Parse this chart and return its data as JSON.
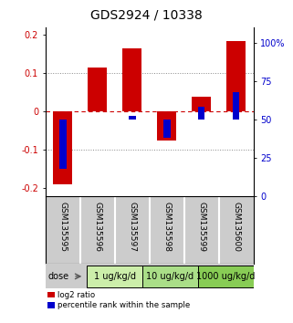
{
  "title": "GDS2924 / 10338",
  "samples": [
    "GSM135595",
    "GSM135596",
    "GSM135597",
    "GSM135598",
    "GSM135599",
    "GSM135600"
  ],
  "log2_ratio": [
    -0.19,
    0.115,
    0.165,
    -0.075,
    0.04,
    0.185
  ],
  "percentile_rank": [
    18,
    50,
    52,
    38,
    58,
    68
  ],
  "dose_groups": [
    {
      "label": "1 ug/kg/d",
      "cols": [
        0,
        1
      ],
      "color": "#cceeaa"
    },
    {
      "label": "10 ug/kg/d",
      "cols": [
        2,
        3
      ],
      "color": "#aade88"
    },
    {
      "label": "1000 ug/kg/d",
      "cols": [
        4,
        5
      ],
      "color": "#88cc55"
    }
  ],
  "bar_color_red": "#cc0000",
  "bar_color_blue": "#0000cc",
  "bar_width": 0.55,
  "blue_bar_width": 0.2,
  "ylim_left": [
    -0.22,
    0.22
  ],
  "ylim_right": [
    0,
    110
  ],
  "yticks_left": [
    -0.2,
    -0.1,
    0.0,
    0.1,
    0.2
  ],
  "ytick_labels_left": [
    "-0.2",
    "-0.1",
    "0",
    "0.1",
    "0.2"
  ],
  "yticks_right": [
    0,
    25,
    50,
    75,
    100
  ],
  "ytick_labels_right": [
    "0",
    "25",
    "50",
    "75",
    "100%"
  ],
  "hlines_dotted": [
    -0.1,
    0.1
  ],
  "bg_color": "#ffffff",
  "sample_bg": "#cccccc",
  "dose_label": "dose",
  "legend_red": "log2 ratio",
  "legend_blue": "percentile rank within the sample",
  "label_color_left": "#cc0000",
  "label_color_right": "#0000cc",
  "title_fontsize": 10,
  "tick_fontsize": 7,
  "sample_fontsize": 6.5,
  "dose_fontsize": 7
}
